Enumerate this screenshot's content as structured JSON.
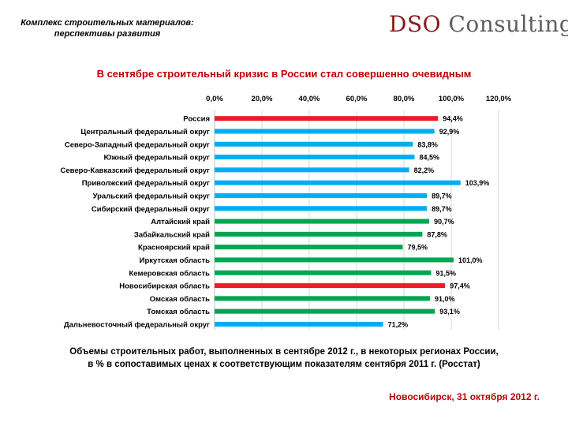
{
  "header": {
    "subtitle_line1": "Комплекс строительных материалов:",
    "subtitle_line2": "перспективы развития",
    "logo_part1": "DSO",
    "logo_part2": " Consulting"
  },
  "page_title": "В сентябре строительный кризис в России стал совершенно очевидным",
  "caption_line1": "Объемы строительных работ, выполненных в  сентябре 2012 г., в некоторых регионах России,",
  "caption_line2": "в % в сопоставимых ценах к соответствующим показателям сентября 2011 г. (Росстат)",
  "footer_date": "Новосибирск, 31 октября 2012 г.",
  "colors": {
    "red": "#ee1c24",
    "blue": "#00aeef",
    "green": "#00a651"
  },
  "chart_data": {
    "type": "bar",
    "orientation": "horizontal",
    "xlim": [
      0,
      120
    ],
    "xticks": [
      "0,0%",
      "20,0%",
      "40,0%",
      "60,0%",
      "80,0%",
      "100,0%",
      "120,0%"
    ],
    "grid": true,
    "categories": [
      "Россия",
      "Центральный федеральный округ",
      "Северо-Западный федеральный округ",
      "Южный федеральный округ",
      "Северо-Кавказский федеральный округ",
      "Приволжский федеральный округ",
      "Уральский федеральный округ",
      "Сибирский федеральный округ",
      "Алтайский край",
      "Забайкальский край",
      "Красноярский край",
      "Иркутская область",
      "Кемеровская область",
      "Новосибирская область",
      "Омская область",
      "Томская область",
      "Дальневосточный федеральный округ"
    ],
    "values": [
      94.4,
      92.9,
      83.8,
      84.5,
      82.2,
      103.9,
      89.7,
      89.7,
      90.7,
      87.8,
      79.5,
      101.0,
      91.5,
      97.4,
      91.0,
      93.1,
      71.2
    ],
    "labels": [
      "94,4%",
      "92,9%",
      "83,8%",
      "84,5%",
      "82,2%",
      "103,9%",
      "89,7%",
      "89,7%",
      "90,7%",
      "87,8%",
      "79,5%",
      "101,0%",
      "91,5%",
      "97,4%",
      "91,0%",
      "93,1%",
      "71,2%"
    ],
    "bar_colors": [
      "red",
      "blue",
      "blue",
      "blue",
      "blue",
      "blue",
      "blue",
      "blue",
      "green",
      "green",
      "green",
      "green",
      "green",
      "red",
      "green",
      "green",
      "blue"
    ]
  }
}
